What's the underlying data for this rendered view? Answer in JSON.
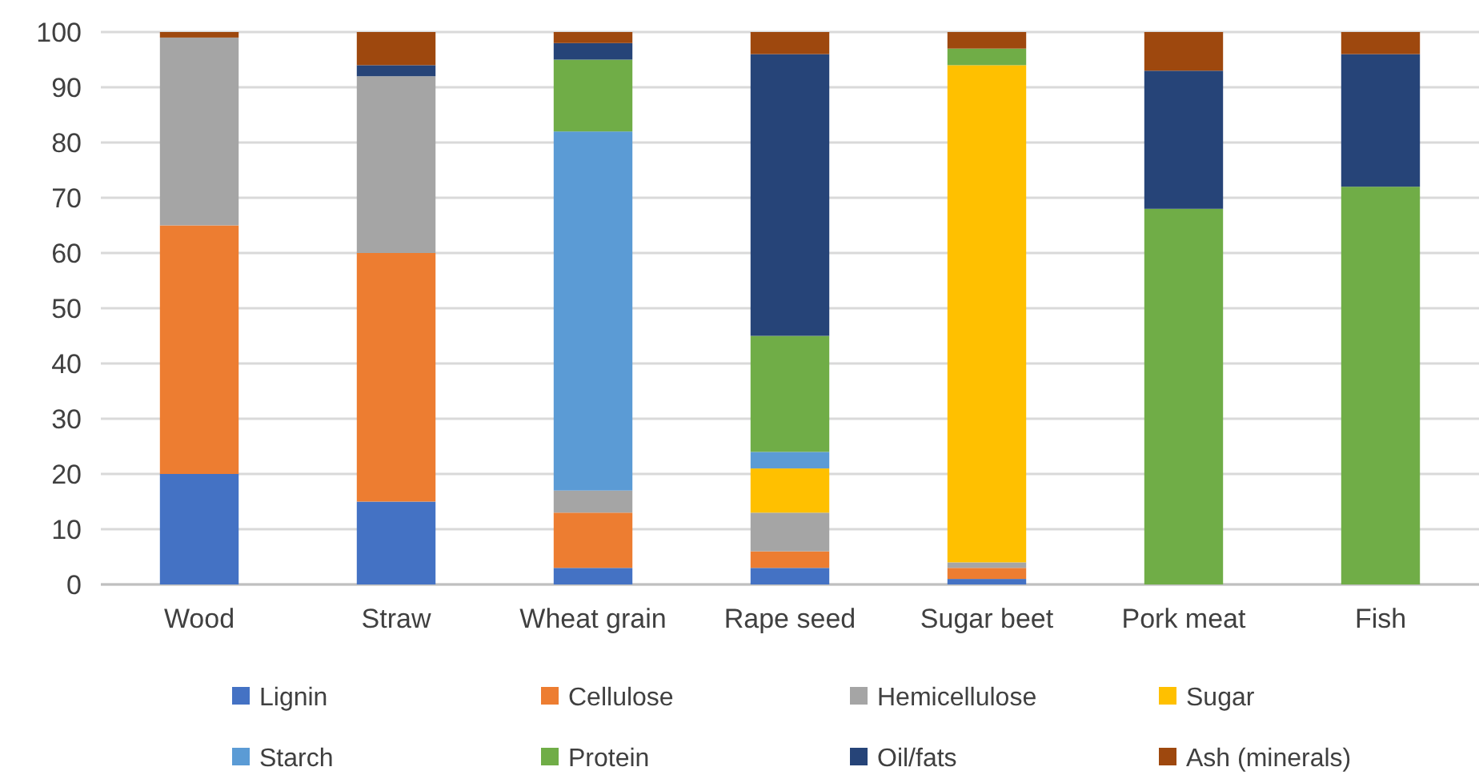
{
  "chart_data": {
    "type": "bar",
    "stacked": true,
    "categories": [
      "Wood",
      "Straw",
      "Wheat grain",
      "Rape seed",
      "Sugar beet",
      "Pork meat",
      "Fish"
    ],
    "series": [
      {
        "name": "Lignin",
        "color": "#4472c4",
        "values": [
          20,
          15,
          3,
          3,
          1,
          0,
          0
        ]
      },
      {
        "name": "Cellulose",
        "color": "#ed7d31",
        "values": [
          45,
          45,
          10,
          3,
          2,
          0,
          0
        ]
      },
      {
        "name": "Hemicellulose",
        "color": "#a5a5a5",
        "values": [
          34,
          32,
          4,
          7,
          1,
          0,
          0
        ]
      },
      {
        "name": "Sugar",
        "color": "#ffc000",
        "values": [
          0,
          0,
          0,
          8,
          90,
          0,
          0
        ]
      },
      {
        "name": "Starch",
        "color": "#5b9bd5",
        "values": [
          0,
          0,
          65,
          3,
          0,
          0,
          0
        ]
      },
      {
        "name": "Protein",
        "color": "#70ad47",
        "values": [
          0,
          0,
          13,
          21,
          3,
          68,
          72
        ]
      },
      {
        "name": "Oil/fats",
        "color": "#264478",
        "values": [
          0,
          2,
          3,
          51,
          0,
          25,
          24
        ]
      },
      {
        "name": "Ash (minerals)",
        "color": "#9e480e",
        "values": [
          1,
          6,
          2,
          4,
          3,
          7,
          4
        ]
      }
    ],
    "ylim": [
      0,
      100
    ],
    "yticks": [
      0,
      10,
      20,
      30,
      40,
      50,
      60,
      70,
      80,
      90,
      100
    ],
    "grid": "y",
    "legend": "bottom"
  }
}
